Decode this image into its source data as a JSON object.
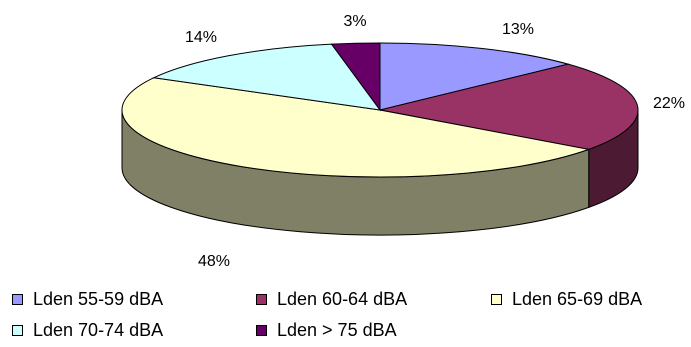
{
  "chart_data": {
    "type": "pie",
    "style": "3d",
    "labels": [
      "Lden 55-59 dBA",
      "Lden 60-64 dBA",
      "Lden 65-69 dBA",
      "Lden 70-74 dBA",
      "Lden > 75 dBA"
    ],
    "values": [
      13,
      22,
      48,
      14,
      3
    ],
    "value_labels": [
      "13%",
      "22%",
      "48%",
      "14%",
      "3%"
    ],
    "colors": [
      "#9999ff",
      "#993366",
      "#ffffcc",
      "#ccffff",
      "#660066"
    ],
    "title": "",
    "legend_placement": "bottom"
  }
}
